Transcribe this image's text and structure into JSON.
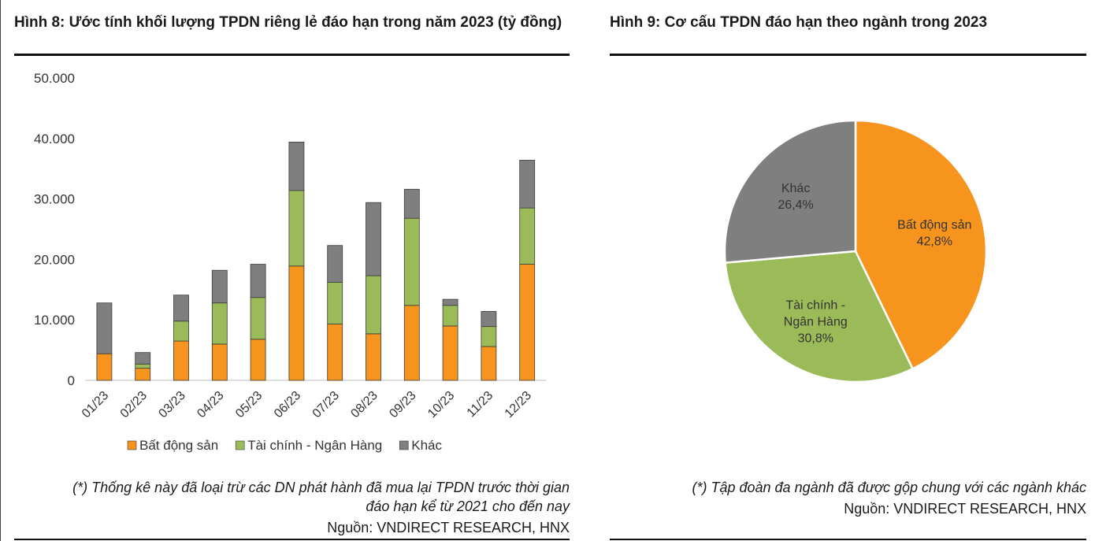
{
  "figures": {
    "left": {
      "title": "Hình 8: Ước tính khối lượng TPDN riêng lẻ đáo hạn trong năm 2023 (tỷ đồng)",
      "note_line1": "(*) Thống kê này đã loại trừ các DN phát hành đã mua lại TPDN trước thời gian",
      "note_line2": "đáo hạn kể từ 2021 cho đến nay",
      "source": "Nguồn: VNDIRECT RESEARCH, HNX"
    },
    "right": {
      "title": "Hình 9: Cơ cấu TPDN đáo hạn theo ngành trong 2023",
      "note": "(*) Tập đoàn đa ngành đã được gộp chung với các ngành khác",
      "source": "Nguồn: VNDIRECT RESEARCH, HNX"
    }
  },
  "chart_data": [
    {
      "type": "bar",
      "stacked": true,
      "title": "Hình 8: Ước tính khối lượng TPDN riêng lẻ đáo hạn trong năm 2023 (tỷ đồng)",
      "categories": [
        "01/23",
        "02/23",
        "03/23",
        "04/23",
        "05/23",
        "06/23",
        "07/23",
        "08/23",
        "09/23",
        "10/23",
        "11/23",
        "12/23"
      ],
      "series": [
        {
          "name": "Bất động sản",
          "color": "#F7941D",
          "values": [
            4400,
            2000,
            6500,
            6000,
            6800,
            18900,
            9300,
            7700,
            12400,
            9000,
            5600,
            19200
          ]
        },
        {
          "name": "Tài chính - Ngân Hàng",
          "color": "#9BBB59",
          "values": [
            0,
            700,
            3300,
            6800,
            6900,
            12500,
            6900,
            9600,
            14400,
            3400,
            3300,
            9300
          ]
        },
        {
          "name": "Khác",
          "color": "#7F7F7F",
          "values": [
            8400,
            1900,
            4300,
            5400,
            5500,
            8000,
            6100,
            12100,
            4800,
            1000,
            2500,
            7900
          ]
        }
      ],
      "y_tick_labels": [
        "0",
        "10.000",
        "20.000",
        "30.000",
        "40.000",
        "50.000"
      ],
      "ylim": [
        0,
        50000
      ],
      "xlabel": "",
      "ylabel": "",
      "legend": "bottom"
    },
    {
      "type": "pie",
      "title": "Hình 9: Cơ cấu TPDN đáo hạn theo ngành trong 2023",
      "slices": [
        {
          "label_line1": "Bất động sản",
          "label_line2": "",
          "pct_label": "42,8%",
          "value": 42.8,
          "color": "#F7941D"
        },
        {
          "label_line1": "Tài chính -",
          "label_line2": "Ngân Hàng",
          "pct_label": "30,8%",
          "value": 30.8,
          "color": "#9BBB59"
        },
        {
          "label_line1": "Khác",
          "label_line2": "",
          "pct_label": "26,4%",
          "value": 26.4,
          "color": "#7F7F7F"
        }
      ]
    }
  ]
}
